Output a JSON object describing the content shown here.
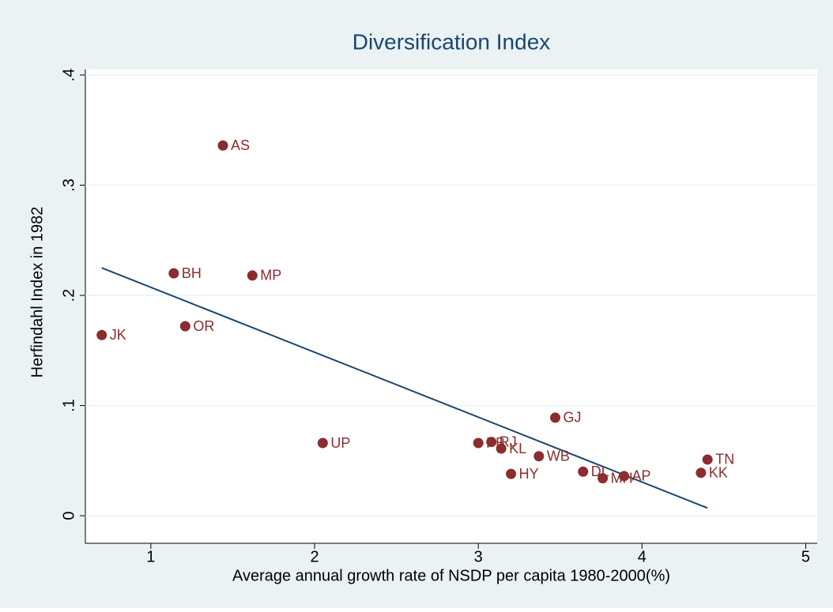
{
  "chart_data": {
    "type": "scatter",
    "title": "Diversification Index",
    "x_label": "Average annual growth rate of NSDP per capita 1980-2000(%)",
    "y_label": "Herfindahl Index in 1982",
    "xlim": [
      0.6,
      5.07
    ],
    "xticks": [
      1,
      2,
      3,
      4,
      5
    ],
    "ylim": [
      -0.025,
      0.405
    ],
    "yticks": [
      0,
      {
        "value": 0.1,
        "label": ".1"
      },
      {
        "value": 0.2,
        "label": ".2"
      },
      {
        "value": 0.3,
        "label": ".3"
      },
      {
        "value": 0.4,
        "label": ".4"
      }
    ],
    "grid": true,
    "points": {
      "color": "#8b2c2f",
      "labels": [
        "JK",
        "AS",
        "BH",
        "MP",
        "OR",
        "UP",
        "PB",
        "RJ",
        "KL",
        "GJ",
        "WB",
        "HY",
        "DL",
        "MH",
        "AP",
        "KK",
        "TN"
      ],
      "x": [
        0.7,
        1.44,
        1.14,
        1.62,
        1.21,
        2.05,
        3.0,
        3.08,
        3.14,
        3.47,
        3.37,
        3.2,
        3.64,
        3.76,
        3.89,
        4.36,
        4.4
      ],
      "values": [
        0.164,
        0.336,
        0.22,
        0.218,
        0.172,
        0.066,
        0.066,
        0.067,
        0.061,
        0.089,
        0.054,
        0.038,
        0.04,
        0.034,
        0.036,
        0.039,
        0.051
      ]
    },
    "fit": {
      "color": "#1a476f",
      "x": [
        0.7,
        4.4
      ],
      "values": [
        0.225,
        0.007
      ]
    }
  }
}
